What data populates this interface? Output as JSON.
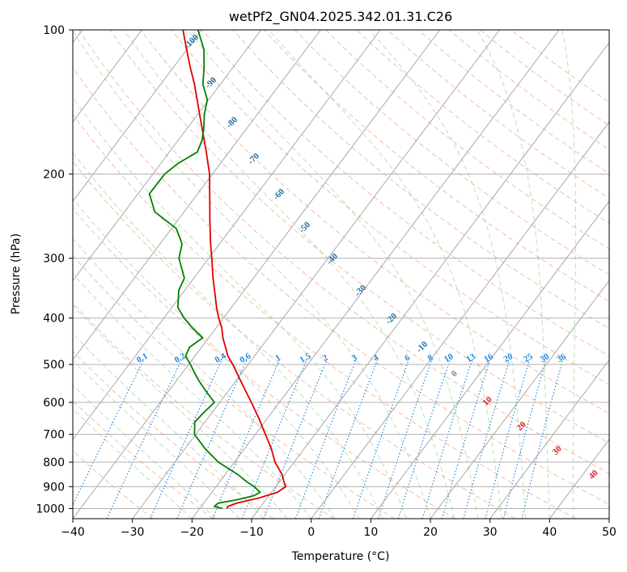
{
  "chart_data": {
    "type": "line",
    "subtype": "skew-t log-p",
    "title": "wetPf2_GN04.2025.342.01.31.C26",
    "xlabel": "Temperature (°C)",
    "ylabel": "Pressure (hPa)",
    "xlim": [
      -40,
      50
    ],
    "ylim": [
      1050,
      100
    ],
    "y_scale": "log",
    "grid": true,
    "x_ticks": [
      "−40",
      "−30",
      "−20",
      "−10",
      "0",
      "10",
      "20",
      "30",
      "40",
      "50"
    ],
    "y_ticks": [
      "100",
      "200",
      "300",
      "400",
      "500",
      "600",
      "700",
      "800",
      "900",
      "1000"
    ],
    "isotherm_labels": [
      "-100",
      "-90",
      "-80",
      "-70",
      "-60",
      "-50",
      "-40",
      "-30",
      "-20",
      "-10",
      "0",
      "10",
      "20",
      "30",
      "40"
    ],
    "mixing_ratio_labels": [
      "0.1",
      "0.2",
      "0.4",
      "0.6",
      "1",
      "1.5",
      "2",
      "3",
      "4",
      "6",
      "8",
      "10",
      "13",
      "16",
      "20",
      "25",
      "30",
      "36"
    ],
    "series": [
      {
        "color": "#e00000",
        "pressure": [
          1000,
          990,
          975,
          950,
          925,
          900,
          875,
          850,
          800,
          750,
          700,
          650,
          600,
          550,
          520,
          500,
          480,
          460,
          440,
          420,
          400,
          380,
          350,
          330,
          300,
          280,
          250,
          230,
          200,
          180,
          150,
          130,
          120,
          110,
          100
        ],
        "values": [
          -15.4,
          -15.5,
          -14.5,
          -11.3,
          -9.0,
          -8.3,
          -9.4,
          -10.4,
          -13.2,
          -15.5,
          -18.3,
          -21.3,
          -24.7,
          -28.5,
          -30.9,
          -32.6,
          -34.5,
          -36.0,
          -37.6,
          -39.0,
          -40.8,
          -42.5,
          -45.0,
          -46.8,
          -49.5,
          -51.5,
          -54.6,
          -56.8,
          -60.5,
          -63.8,
          -69.7,
          -74.3,
          -77.1,
          -80.0,
          -83.1
        ]
      },
      {
        "color": "#008000",
        "pressure": [
          1000,
          990,
          975,
          960,
          940,
          925,
          900,
          880,
          850,
          800,
          750,
          700,
          660,
          630,
          600,
          570,
          540,
          520,
          500,
          480,
          460,
          440,
          420,
          400,
          380,
          350,
          330,
          300,
          280,
          260,
          240,
          220,
          200,
          190,
          180,
          170,
          160,
          150,
          140,
          130,
          120,
          110,
          100
        ],
        "values": [
          -16.2,
          -17.8,
          -17.6,
          -15.0,
          -12.5,
          -11.9,
          -13.6,
          -15.4,
          -17.8,
          -22.7,
          -26.6,
          -30.2,
          -31.7,
          -31.4,
          -30.9,
          -33.6,
          -36.3,
          -38.0,
          -39.7,
          -41.6,
          -42.0,
          -41.0,
          -43.9,
          -46.6,
          -49.0,
          -51.0,
          -51.6,
          -55.0,
          -56.3,
          -59.2,
          -64.9,
          -68.1,
          -68.0,
          -67.1,
          -65.3,
          -66.0,
          -67.3,
          -68.9,
          -70.2,
          -72.9,
          -74.8,
          -77.1,
          -80.6
        ]
      }
    ]
  }
}
